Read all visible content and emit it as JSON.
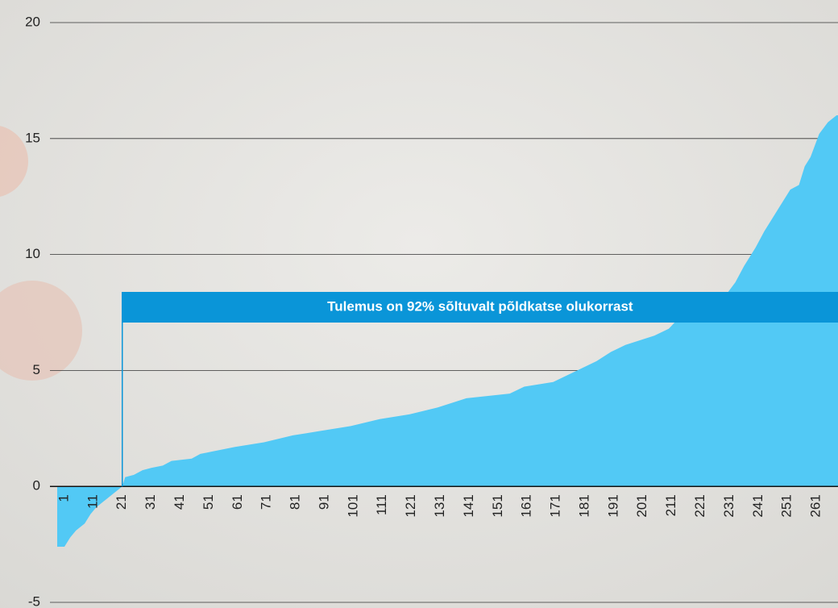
{
  "chart_data": {
    "type": "area",
    "x": [
      1,
      3,
      5,
      8,
      10,
      12,
      15,
      18,
      21,
      22,
      25,
      28,
      31,
      35,
      38,
      45,
      48,
      52,
      60,
      70,
      80,
      90,
      100,
      110,
      120,
      130,
      140,
      155,
      160,
      170,
      175,
      180,
      185,
      190,
      195,
      200,
      205,
      210,
      213,
      218,
      225,
      230,
      233,
      236,
      240,
      243,
      246,
      249,
      252,
      255,
      257,
      259,
      262,
      265,
      268
    ],
    "values": [
      -2.6,
      -2.2,
      -1.9,
      -1.6,
      -1.2,
      -0.9,
      -0.6,
      -0.3,
      0.0,
      0.4,
      0.5,
      0.7,
      0.8,
      0.9,
      1.1,
      1.2,
      1.4,
      1.5,
      1.7,
      1.9,
      2.2,
      2.4,
      2.6,
      2.9,
      3.1,
      3.4,
      3.8,
      4.0,
      4.3,
      4.5,
      4.8,
      5.1,
      5.4,
      5.8,
      6.1,
      6.3,
      6.5,
      6.8,
      7.2,
      7.5,
      7.8,
      8.3,
      8.8,
      9.5,
      10.3,
      11.0,
      11.6,
      12.2,
      12.8,
      13.0,
      13.8,
      14.2,
      15.2,
      15.7,
      16.0
    ],
    "color": "#52c9f5",
    "xlim": [
      -1.5,
      268.5
    ],
    "xticks": [
      1,
      11,
      21,
      31,
      41,
      51,
      61,
      71,
      81,
      91,
      101,
      111,
      121,
      131,
      141,
      151,
      161,
      171,
      181,
      191,
      201,
      211,
      221,
      231,
      241,
      251,
      261
    ],
    "ylim": [
      -5,
      20
    ],
    "yticks": [
      -5,
      0,
      5,
      10,
      15,
      20
    ],
    "grid": true,
    "annotation": {
      "text": "Tulemus on 92% sõltuvalt põldkatse olukorrast",
      "x": 21,
      "color": "#0a95d8"
    }
  }
}
